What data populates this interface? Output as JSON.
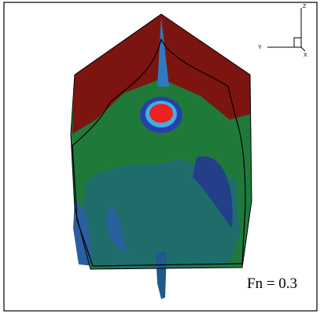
{
  "label": "Fn = 0.3",
  "axes": {
    "z": "Z",
    "y": "Y",
    "x": "X"
  }
}
